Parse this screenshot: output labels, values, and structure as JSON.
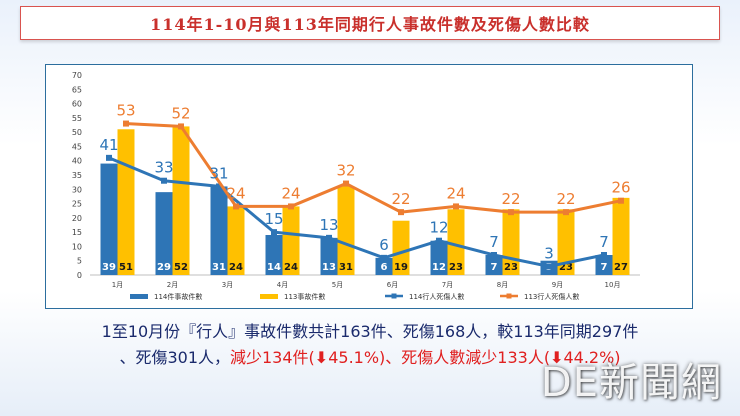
{
  "title": "114年1-10月與113年同期行人事故件數及死傷人數比較",
  "chart_data": {
    "type": "bar",
    "categories": [
      "1月",
      "2月",
      "3月",
      "4月",
      "5月",
      "6月",
      "7月",
      "8月",
      "9月",
      "10月"
    ],
    "ylim": [
      0,
      70
    ],
    "yticks": [
      0,
      5,
      10,
      15,
      20,
      25,
      30,
      35,
      40,
      45,
      50,
      55,
      60,
      65,
      70
    ],
    "grid": false,
    "legend_position": "bottom",
    "series": [
      {
        "name": "114件事故件數",
        "kind": "bar",
        "color": "#2e75b6",
        "values": [
          39,
          29,
          31,
          14,
          13,
          6,
          12,
          7,
          5,
          7
        ]
      },
      {
        "name": "113事故件數",
        "kind": "bar",
        "color": "#ffc000",
        "values": [
          51,
          52,
          24,
          24,
          31,
          19,
          23,
          23,
          23,
          27
        ]
      },
      {
        "name": "114行人死傷人數",
        "kind": "line",
        "color": "#2e75b6",
        "values": [
          41,
          33,
          31,
          15,
          13,
          6,
          12,
          7,
          3,
          7
        ]
      },
      {
        "name": "113行人死傷人數",
        "kind": "line",
        "color": "#ed7d31",
        "values": [
          53,
          52,
          24,
          24,
          32,
          22,
          24,
          22,
          22,
          26
        ]
      }
    ]
  },
  "caption": {
    "line1": "1至10月份『行人』事故件數共計163件、死傷168人，較113年同期297件",
    "line2_a": "、死傷301人，",
    "line2_b": "減少134件(",
    "line2_arrow": "⬇",
    "line2_c": "45.1%)、死傷人數減少133人(",
    "line2_arrow2": "⬇",
    "line2_d": "44.2%)"
  },
  "watermark": "DE新聞網"
}
